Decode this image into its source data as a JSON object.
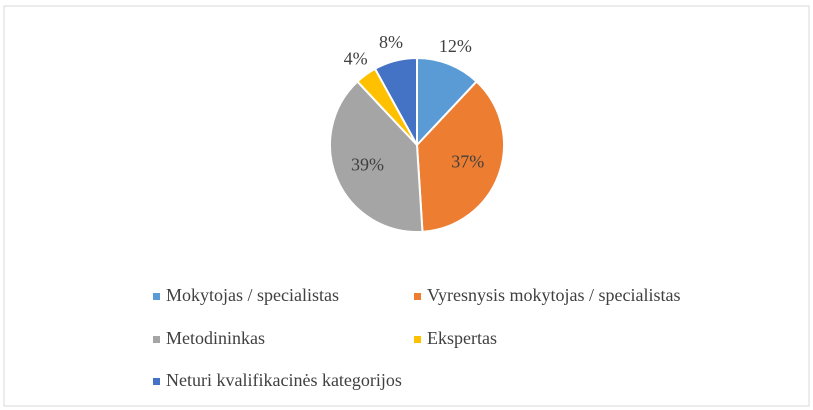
{
  "chart_data": {
    "type": "pie",
    "categories": [
      "Mokytojas / specialistas",
      "Vyresnysis mokytojas / specialistas",
      "Metodininkas",
      "Ekspertas",
      "Neturi kvalifikacinės kategorijos"
    ],
    "values": [
      12,
      37,
      39,
      4,
      8
    ],
    "value_labels": [
      "12%",
      "37%",
      "39%",
      "4%",
      "8%"
    ],
    "colors": [
      "#5b9bd5",
      "#ed7d31",
      "#a5a5a5",
      "#ffc000",
      "#4472c4"
    ],
    "legend": "bottom"
  }
}
